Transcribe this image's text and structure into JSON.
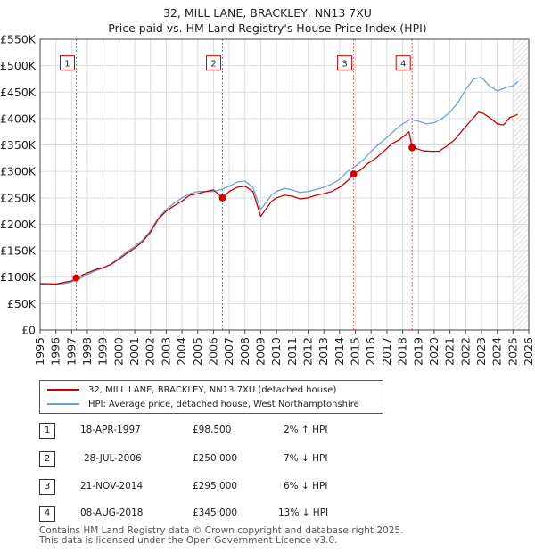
{
  "title_line1": "32, MILL LANE, BRACKLEY, NN13 7XU",
  "title_line2": "Price paid vs. HM Land Registry's House Price Index (HPI)",
  "chart_data": {
    "type": "line",
    "xlim": [
      1995,
      2026
    ],
    "ylim": [
      0,
      550000
    ],
    "y_ticks": [
      {
        "value": 0,
        "label": "£0"
      },
      {
        "value": 50000,
        "label": "£50K"
      },
      {
        "value": 100000,
        "label": "£100K"
      },
      {
        "value": 150000,
        "label": "£150K"
      },
      {
        "value": 200000,
        "label": "£200K"
      },
      {
        "value": 250000,
        "label": "£250K"
      },
      {
        "value": 300000,
        "label": "£300K"
      },
      {
        "value": 350000,
        "label": "£350K"
      },
      {
        "value": 400000,
        "label": "£400K"
      },
      {
        "value": 450000,
        "label": "£450K"
      },
      {
        "value": 500000,
        "label": "£500K"
      },
      {
        "value": 550000,
        "label": "£550K"
      }
    ],
    "x_ticks": [
      "1995",
      "1996",
      "1997",
      "1998",
      "1999",
      "2000",
      "2001",
      "2002",
      "2003",
      "2004",
      "2005",
      "2006",
      "2007",
      "2008",
      "2009",
      "2010",
      "2011",
      "2012",
      "2013",
      "2014",
      "2015",
      "2016",
      "2017",
      "2018",
      "2019",
      "2020",
      "2021",
      "2022",
      "2023",
      "2024",
      "2025",
      "2026"
    ],
    "hatch_after": 2025.0,
    "series": [
      {
        "name": "32, MILL LANE, BRACKLEY, NN13 7XU (detached house)",
        "color": "#cc0000",
        "points": [
          [
            1995.0,
            88000
          ],
          [
            1995.5,
            87500
          ],
          [
            1996.0,
            87000
          ],
          [
            1996.5,
            90000
          ],
          [
            1997.0,
            93000
          ],
          [
            1997.29,
            98500
          ],
          [
            1997.7,
            104000
          ],
          [
            1998.0,
            108000
          ],
          [
            1998.5,
            114000
          ],
          [
            1999.0,
            118000
          ],
          [
            1999.5,
            124000
          ],
          [
            2000.0,
            134000
          ],
          [
            2000.5,
            145000
          ],
          [
            2001.0,
            155000
          ],
          [
            2001.5,
            167000
          ],
          [
            2002.0,
            185000
          ],
          [
            2002.5,
            210000
          ],
          [
            2003.0,
            225000
          ],
          [
            2003.5,
            235000
          ],
          [
            2004.0,
            244000
          ],
          [
            2004.5,
            255000
          ],
          [
            2005.0,
            258000
          ],
          [
            2005.5,
            262000
          ],
          [
            2006.0,
            265000
          ],
          [
            2006.57,
            250000
          ],
          [
            2007.0,
            262000
          ],
          [
            2007.5,
            270000
          ],
          [
            2008.0,
            272000
          ],
          [
            2008.5,
            262000
          ],
          [
            2009.0,
            215000
          ],
          [
            2009.3,
            228000
          ],
          [
            2009.7,
            244000
          ],
          [
            2010.0,
            250000
          ],
          [
            2010.5,
            255000
          ],
          [
            2011.0,
            253000
          ],
          [
            2011.5,
            248000
          ],
          [
            2012.0,
            250000
          ],
          [
            2012.5,
            255000
          ],
          [
            2013.0,
            258000
          ],
          [
            2013.5,
            262000
          ],
          [
            2014.0,
            270000
          ],
          [
            2014.5,
            282000
          ],
          [
            2014.89,
            295000
          ],
          [
            2015.3,
            302000
          ],
          [
            2015.8,
            315000
          ],
          [
            2016.3,
            325000
          ],
          [
            2016.8,
            338000
          ],
          [
            2017.3,
            352000
          ],
          [
            2017.8,
            360000
          ],
          [
            2018.2,
            370000
          ],
          [
            2018.4,
            375000
          ],
          [
            2018.6,
            345000
          ],
          [
            2018.9,
            343000
          ],
          [
            2019.3,
            339000
          ],
          [
            2019.8,
            338000
          ],
          [
            2020.3,
            338000
          ],
          [
            2020.8,
            348000
          ],
          [
            2021.3,
            360000
          ],
          [
            2021.8,
            378000
          ],
          [
            2022.3,
            395000
          ],
          [
            2022.8,
            412000
          ],
          [
            2023.1,
            410000
          ],
          [
            2023.6,
            400000
          ],
          [
            2024.0,
            390000
          ],
          [
            2024.4,
            388000
          ],
          [
            2024.8,
            402000
          ],
          [
            2025.3,
            408000
          ]
        ]
      },
      {
        "name": "HPI: Average price, detached house, West Northamptonshire",
        "color": "#6f9fd8",
        "points": [
          [
            1995.0,
            87000
          ],
          [
            1995.5,
            86500
          ],
          [
            1996.0,
            86000
          ],
          [
            1996.5,
            88000
          ],
          [
            1997.0,
            91000
          ],
          [
            1997.5,
            97000
          ],
          [
            1998.0,
            105000
          ],
          [
            1998.5,
            112000
          ],
          [
            1999.0,
            117000
          ],
          [
            1999.5,
            125000
          ],
          [
            2000.0,
            136000
          ],
          [
            2000.5,
            148000
          ],
          [
            2001.0,
            158000
          ],
          [
            2001.5,
            170000
          ],
          [
            2002.0,
            188000
          ],
          [
            2002.5,
            212000
          ],
          [
            2003.0,
            228000
          ],
          [
            2003.5,
            240000
          ],
          [
            2004.0,
            250000
          ],
          [
            2004.5,
            258000
          ],
          [
            2005.0,
            262000
          ],
          [
            2005.5,
            262000
          ],
          [
            2006.0,
            262000
          ],
          [
            2006.5,
            266000
          ],
          [
            2007.0,
            272000
          ],
          [
            2007.5,
            280000
          ],
          [
            2008.0,
            282000
          ],
          [
            2008.5,
            270000
          ],
          [
            2009.0,
            228000
          ],
          [
            2009.3,
            240000
          ],
          [
            2009.7,
            256000
          ],
          [
            2010.0,
            262000
          ],
          [
            2010.5,
            268000
          ],
          [
            2011.0,
            265000
          ],
          [
            2011.5,
            260000
          ],
          [
            2012.0,
            262000
          ],
          [
            2012.5,
            266000
          ],
          [
            2013.0,
            270000
          ],
          [
            2013.5,
            276000
          ],
          [
            2014.0,
            285000
          ],
          [
            2014.5,
            300000
          ],
          [
            2015.0,
            310000
          ],
          [
            2015.5,
            322000
          ],
          [
            2016.0,
            338000
          ],
          [
            2016.5,
            352000
          ],
          [
            2017.0,
            364000
          ],
          [
            2017.5,
            378000
          ],
          [
            2018.0,
            390000
          ],
          [
            2018.5,
            398000
          ],
          [
            2019.0,
            395000
          ],
          [
            2019.5,
            390000
          ],
          [
            2020.0,
            392000
          ],
          [
            2020.5,
            400000
          ],
          [
            2021.0,
            412000
          ],
          [
            2021.5,
            430000
          ],
          [
            2022.0,
            455000
          ],
          [
            2022.5,
            475000
          ],
          [
            2023.0,
            478000
          ],
          [
            2023.5,
            462000
          ],
          [
            2024.0,
            452000
          ],
          [
            2024.5,
            458000
          ],
          [
            2025.0,
            462000
          ],
          [
            2025.3,
            470000
          ]
        ]
      }
    ],
    "sales": [
      {
        "label": "1",
        "year": 1997.29,
        "price": 98500
      },
      {
        "label": "2",
        "year": 2006.57,
        "price": 250000
      },
      {
        "label": "3",
        "year": 2014.89,
        "price": 295000
      },
      {
        "label": "4",
        "year": 2018.6,
        "price": 345000
      }
    ],
    "box_value": 505000
  },
  "legend": {
    "red_label": "32, MILL LANE, BRACKLEY, NN13 7XU (detached house)",
    "blue_label": "HPI: Average price, detached house, West Northamptonshire",
    "red_color": "#cc0000",
    "blue_color": "#6f9fd8"
  },
  "table": [
    {
      "num": "1",
      "date": "18-APR-1997",
      "price": "£98,500",
      "hpi": "2% ↑ HPI"
    },
    {
      "num": "2",
      "date": "28-JUL-2006",
      "price": "£250,000",
      "hpi": "7% ↓ HPI"
    },
    {
      "num": "3",
      "date": "21-NOV-2014",
      "price": "£295,000",
      "hpi": "6% ↓ HPI"
    },
    {
      "num": "4",
      "date": "08-AUG-2018",
      "price": "£345,000",
      "hpi": "13% ↓ HPI"
    }
  ],
  "footer": {
    "line1": "Contains HM Land Registry data © Crown copyright and database right 2025.",
    "line2": "This data is licensed under the Open Government Licence v3.0."
  }
}
